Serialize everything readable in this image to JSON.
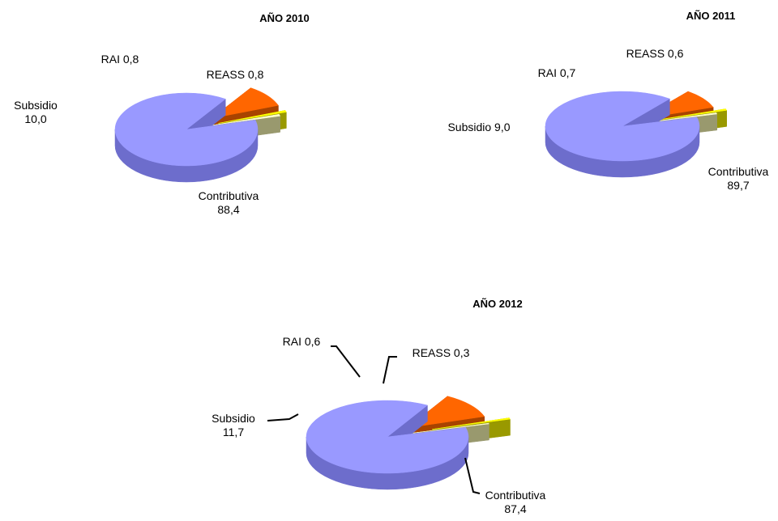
{
  "chart_data": [
    {
      "type": "pie",
      "title": "AÑO 2010",
      "slices": [
        {
          "label": "Contributiva",
          "value": 88.4,
          "value_text": "88,4",
          "color": "#9999ff",
          "side": "#6d6dcc"
        },
        {
          "label": "Subsidio",
          "value": 10.0,
          "value_text": "10,0",
          "color": "#ff6600",
          "side": "#a84300"
        },
        {
          "label": "RAI",
          "value": 0.8,
          "value_text": "0,8",
          "color": "#ffff00",
          "side": "#999900"
        },
        {
          "label": "REASS",
          "value": 0.8,
          "value_text": "0,8",
          "color": "#ffffcc",
          "side": "#99996e"
        }
      ]
    },
    {
      "type": "pie",
      "title": "AÑO 2011",
      "slices": [
        {
          "label": "Contributiva",
          "value": 89.7,
          "value_text": "89,7",
          "color": "#9999ff",
          "side": "#6d6dcc"
        },
        {
          "label": "Subsidio",
          "value": 9.0,
          "value_text": "9,0",
          "color": "#ff6600",
          "side": "#a84300"
        },
        {
          "label": "RAI",
          "value": 0.7,
          "value_text": "0,7",
          "color": "#ffff00",
          "side": "#999900"
        },
        {
          "label": "REASS",
          "value": 0.6,
          "value_text": "0,6",
          "color": "#ffffcc",
          "side": "#99996e"
        }
      ]
    },
    {
      "type": "pie",
      "title": "AÑO 2012",
      "slices": [
        {
          "label": "Contributiva",
          "value": 87.4,
          "value_text": "87,4",
          "color": "#9999ff",
          "side": "#6d6dcc"
        },
        {
          "label": "Subsidio",
          "value": 11.7,
          "value_text": "11,7",
          "color": "#ff6600",
          "side": "#a84300"
        },
        {
          "label": "RAI",
          "value": 0.6,
          "value_text": "0,6",
          "color": "#ffff00",
          "side": "#999900"
        },
        {
          "label": "REASS",
          "value": 0.3,
          "value_text": "0,3",
          "color": "#ffffcc",
          "side": "#99996e"
        }
      ]
    }
  ]
}
